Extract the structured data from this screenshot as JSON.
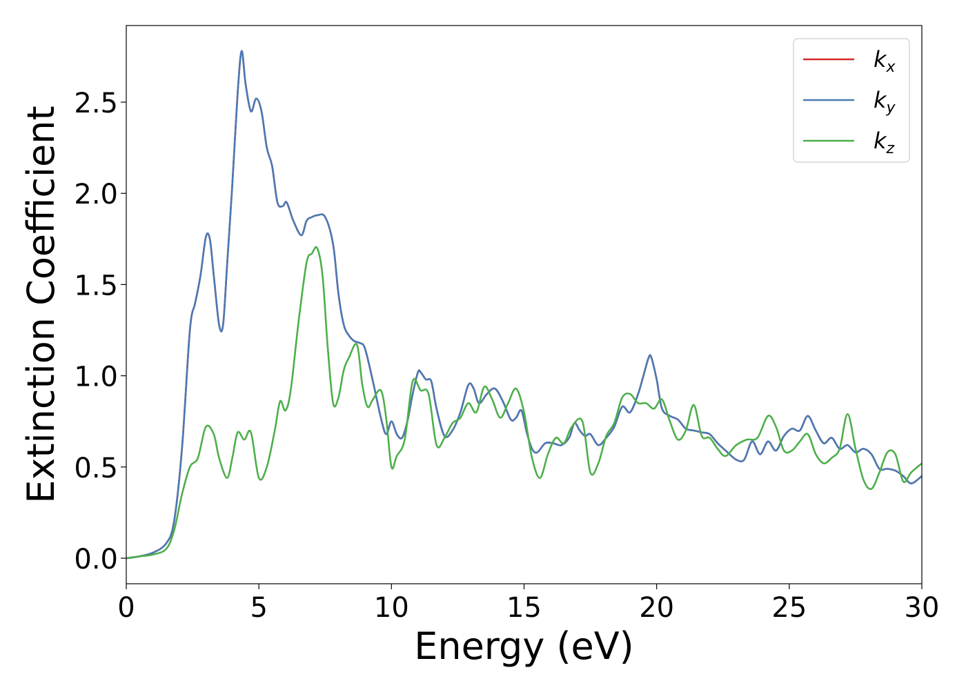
{
  "chart_data": {
    "type": "line",
    "xlabel": "Energy (eV)",
    "ylabel": "Extinction Coefficient",
    "xlim": [
      0,
      30
    ],
    "ylim": [
      -0.14,
      2.92
    ],
    "xticks": [
      0,
      5,
      10,
      15,
      20,
      25,
      30
    ],
    "xtick_labels": [
      "0",
      "5",
      "10",
      "15",
      "20",
      "25",
      "30"
    ],
    "yticks": [
      0.0,
      0.5,
      1.0,
      1.5,
      2.0,
      2.5
    ],
    "ytick_labels": [
      "0.0",
      "0.5",
      "1.0",
      "1.5",
      "2.0",
      "2.5"
    ],
    "grid": false,
    "legend_position": "top-right",
    "series": [
      {
        "name": "k",
        "subscript": "x",
        "color": "#d62728",
        "x": [
          0,
          0.5,
          1.0,
          1.5,
          1.8,
          2.1,
          2.4,
          2.6,
          2.8,
          3.0,
          3.15,
          3.3,
          3.5,
          3.65,
          3.8,
          4.0,
          4.2,
          4.35,
          4.5,
          4.7,
          4.9,
          5.1,
          5.3,
          5.5,
          5.7,
          5.9,
          6.05,
          6.3,
          6.6,
          6.8,
          7.0,
          7.2,
          7.5,
          7.8,
          8.0,
          8.2,
          8.4,
          8.6,
          8.8,
          9.0,
          9.3,
          9.6,
          9.8,
          10.0,
          10.2,
          10.4,
          10.6,
          10.8,
          11.0,
          11.1,
          11.3,
          11.5,
          11.7,
          12.0,
          12.3,
          12.6,
          12.9,
          13.1,
          13.3,
          13.6,
          13.9,
          14.2,
          14.5,
          14.7,
          14.9,
          15.1,
          15.3,
          15.5,
          15.8,
          16.1,
          16.4,
          16.7,
          16.9,
          17.1,
          17.3,
          17.5,
          17.8,
          18.1,
          18.4,
          18.7,
          19.0,
          19.3,
          19.5,
          19.7,
          19.8,
          20.0,
          20.2,
          20.5,
          20.8,
          21.1,
          21.4,
          21.7,
          22.0,
          22.3,
          22.6,
          23.0,
          23.3,
          23.6,
          23.9,
          24.2,
          24.5,
          24.8,
          25.1,
          25.4,
          25.7,
          26.0,
          26.3,
          26.6,
          26.9,
          27.2,
          27.5,
          27.8,
          28.1,
          28.4,
          28.7,
          29.0,
          29.3,
          29.6,
          30.0
        ],
        "y": [
          0.0,
          0.01,
          0.03,
          0.08,
          0.2,
          0.6,
          1.25,
          1.4,
          1.55,
          1.76,
          1.75,
          1.55,
          1.28,
          1.28,
          1.6,
          2.05,
          2.55,
          2.78,
          2.6,
          2.45,
          2.52,
          2.45,
          2.25,
          2.15,
          1.95,
          1.93,
          1.95,
          1.85,
          1.77,
          1.85,
          1.87,
          1.88,
          1.87,
          1.72,
          1.45,
          1.28,
          1.22,
          1.19,
          1.18,
          1.15,
          0.97,
          0.77,
          0.68,
          0.75,
          0.68,
          0.66,
          0.75,
          0.9,
          1.02,
          1.02,
          0.98,
          0.97,
          0.82,
          0.67,
          0.7,
          0.8,
          0.95,
          0.93,
          0.85,
          0.9,
          0.93,
          0.86,
          0.76,
          0.77,
          0.81,
          0.69,
          0.6,
          0.58,
          0.63,
          0.63,
          0.62,
          0.66,
          0.74,
          0.7,
          0.67,
          0.68,
          0.62,
          0.66,
          0.72,
          0.83,
          0.8,
          0.9,
          1.0,
          1.1,
          1.1,
          0.98,
          0.82,
          0.78,
          0.76,
          0.71,
          0.7,
          0.69,
          0.68,
          0.63,
          0.59,
          0.54,
          0.54,
          0.64,
          0.57,
          0.64,
          0.59,
          0.67,
          0.71,
          0.7,
          0.78,
          0.7,
          0.63,
          0.66,
          0.6,
          0.62,
          0.58,
          0.6,
          0.57,
          0.49,
          0.49,
          0.48,
          0.45,
          0.41,
          0.45
        ]
      },
      {
        "name": "k",
        "subscript": "y",
        "color": "#4a7ab5",
        "x": [
          0,
          0.5,
          1.0,
          1.5,
          1.8,
          2.1,
          2.4,
          2.6,
          2.8,
          3.0,
          3.15,
          3.3,
          3.5,
          3.65,
          3.8,
          4.0,
          4.2,
          4.35,
          4.5,
          4.7,
          4.9,
          5.1,
          5.3,
          5.5,
          5.7,
          5.9,
          6.05,
          6.3,
          6.6,
          6.8,
          7.0,
          7.2,
          7.5,
          7.8,
          8.0,
          8.2,
          8.4,
          8.6,
          8.8,
          9.0,
          9.3,
          9.6,
          9.8,
          10.0,
          10.2,
          10.4,
          10.6,
          10.8,
          11.0,
          11.1,
          11.3,
          11.5,
          11.7,
          12.0,
          12.3,
          12.6,
          12.9,
          13.1,
          13.3,
          13.6,
          13.9,
          14.2,
          14.5,
          14.7,
          14.9,
          15.1,
          15.3,
          15.5,
          15.8,
          16.1,
          16.4,
          16.7,
          16.9,
          17.1,
          17.3,
          17.5,
          17.8,
          18.1,
          18.4,
          18.7,
          19.0,
          19.3,
          19.5,
          19.7,
          19.8,
          20.0,
          20.2,
          20.5,
          20.8,
          21.1,
          21.4,
          21.7,
          22.0,
          22.3,
          22.6,
          23.0,
          23.3,
          23.6,
          23.9,
          24.2,
          24.5,
          24.8,
          25.1,
          25.4,
          25.7,
          26.0,
          26.3,
          26.6,
          26.9,
          27.2,
          27.5,
          27.8,
          28.1,
          28.4,
          28.7,
          29.0,
          29.3,
          29.6,
          30.0
        ],
        "y": [
          0.0,
          0.01,
          0.03,
          0.08,
          0.2,
          0.6,
          1.25,
          1.4,
          1.55,
          1.76,
          1.75,
          1.55,
          1.28,
          1.28,
          1.6,
          2.05,
          2.55,
          2.78,
          2.6,
          2.45,
          2.52,
          2.45,
          2.25,
          2.15,
          1.95,
          1.93,
          1.95,
          1.85,
          1.77,
          1.85,
          1.87,
          1.88,
          1.87,
          1.72,
          1.45,
          1.28,
          1.22,
          1.19,
          1.18,
          1.15,
          0.97,
          0.77,
          0.68,
          0.75,
          0.68,
          0.66,
          0.75,
          0.9,
          1.02,
          1.02,
          0.98,
          0.97,
          0.82,
          0.67,
          0.7,
          0.8,
          0.95,
          0.93,
          0.85,
          0.9,
          0.93,
          0.86,
          0.76,
          0.77,
          0.81,
          0.69,
          0.6,
          0.58,
          0.63,
          0.63,
          0.62,
          0.66,
          0.74,
          0.7,
          0.67,
          0.68,
          0.62,
          0.66,
          0.72,
          0.83,
          0.8,
          0.9,
          1.0,
          1.1,
          1.1,
          0.98,
          0.82,
          0.78,
          0.76,
          0.71,
          0.7,
          0.69,
          0.68,
          0.63,
          0.59,
          0.54,
          0.54,
          0.64,
          0.57,
          0.64,
          0.59,
          0.67,
          0.71,
          0.7,
          0.78,
          0.7,
          0.63,
          0.66,
          0.6,
          0.62,
          0.58,
          0.6,
          0.57,
          0.49,
          0.49,
          0.48,
          0.45,
          0.41,
          0.45
        ]
      },
      {
        "name": "k",
        "subscript": "z",
        "color": "#4daf4a",
        "x": [
          0,
          0.5,
          1.0,
          1.5,
          1.8,
          2.1,
          2.4,
          2.7,
          3.0,
          3.3,
          3.5,
          3.8,
          4.0,
          4.2,
          4.45,
          4.7,
          5.0,
          5.3,
          5.6,
          5.8,
          6.0,
          6.2,
          6.5,
          6.8,
          7.0,
          7.2,
          7.4,
          7.6,
          7.8,
          8.0,
          8.2,
          8.4,
          8.7,
          8.9,
          9.1,
          9.3,
          9.6,
          9.8,
          10.0,
          10.2,
          10.5,
          10.8,
          11.1,
          11.4,
          11.7,
          12.0,
          12.3,
          12.6,
          12.9,
          13.2,
          13.5,
          13.8,
          14.1,
          14.4,
          14.7,
          15.0,
          15.3,
          15.6,
          15.9,
          16.2,
          16.5,
          16.8,
          17.2,
          17.5,
          17.8,
          18.1,
          18.4,
          18.7,
          19.0,
          19.3,
          19.6,
          19.9,
          20.2,
          20.5,
          20.8,
          21.1,
          21.4,
          21.7,
          22.0,
          22.3,
          22.6,
          23.0,
          23.4,
          23.8,
          24.2,
          24.5,
          24.8,
          25.1,
          25.4,
          25.7,
          26.0,
          26.3,
          26.6,
          26.9,
          27.2,
          27.5,
          27.8,
          28.1,
          28.4,
          28.7,
          29.0,
          29.3,
          29.6,
          30.0
        ],
        "y": [
          0.0,
          0.01,
          0.02,
          0.05,
          0.15,
          0.35,
          0.5,
          0.55,
          0.72,
          0.68,
          0.55,
          0.44,
          0.55,
          0.69,
          0.65,
          0.69,
          0.44,
          0.5,
          0.7,
          0.86,
          0.81,
          0.92,
          1.3,
          1.62,
          1.67,
          1.7,
          1.55,
          1.15,
          0.85,
          0.88,
          1.03,
          1.1,
          1.17,
          0.95,
          0.83,
          0.87,
          0.92,
          0.77,
          0.5,
          0.56,
          0.65,
          0.97,
          0.92,
          0.9,
          0.62,
          0.66,
          0.74,
          0.77,
          0.85,
          0.8,
          0.94,
          0.87,
          0.77,
          0.85,
          0.93,
          0.8,
          0.55,
          0.44,
          0.57,
          0.66,
          0.63,
          0.72,
          0.75,
          0.47,
          0.52,
          0.67,
          0.74,
          0.88,
          0.9,
          0.85,
          0.85,
          0.82,
          0.87,
          0.75,
          0.65,
          0.7,
          0.84,
          0.67,
          0.66,
          0.6,
          0.56,
          0.62,
          0.65,
          0.66,
          0.78,
          0.72,
          0.59,
          0.59,
          0.64,
          0.68,
          0.57,
          0.52,
          0.55,
          0.6,
          0.79,
          0.6,
          0.43,
          0.38,
          0.47,
          0.58,
          0.57,
          0.42,
          0.47,
          0.52
        ]
      }
    ]
  }
}
